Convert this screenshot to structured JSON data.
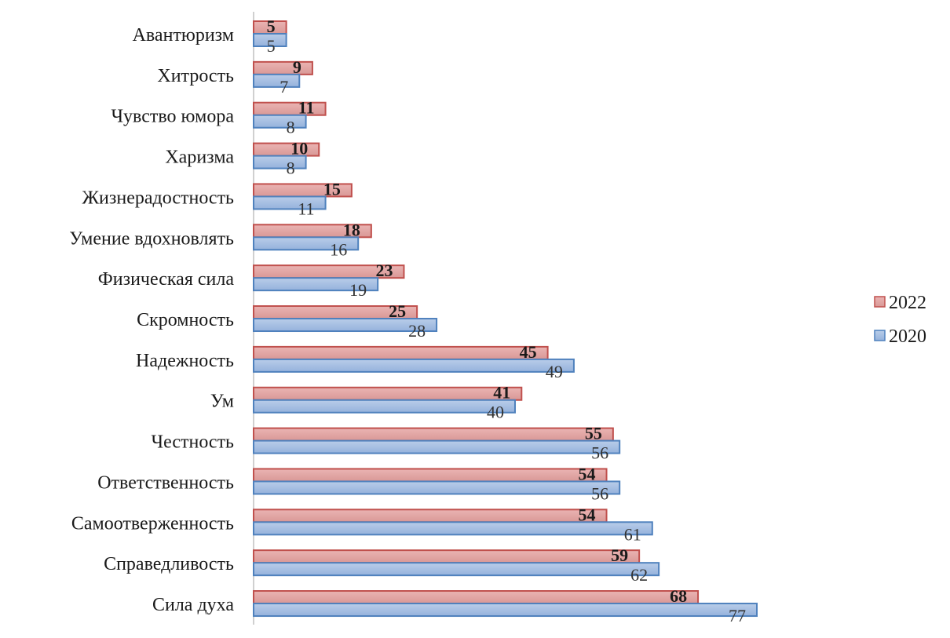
{
  "chart_data": {
    "type": "bar",
    "orientation": "horizontal",
    "title": "",
    "xlabel": "",
    "ylabel": "",
    "xlim": [
      0,
      77
    ],
    "grid": false,
    "legend_position": "right",
    "categories": [
      "Авантюризм",
      "Хитрость",
      "Чувство юмора",
      "Харизма",
      "Жизнерадостность",
      "Умение вдохновлять",
      "Физическая сила",
      "Скромность",
      "Надежность",
      "Ум",
      "Честность",
      "Ответственность",
      "Самоотверженность",
      "Справедливость",
      "Сила духа"
    ],
    "series": [
      {
        "name": "2022",
        "color": "#c0504d",
        "fill": "#e6a9a8",
        "values": [
          5,
          9,
          11,
          10,
          15,
          18,
          23,
          25,
          45,
          41,
          55,
          54,
          54,
          59,
          68
        ]
      },
      {
        "name": "2020",
        "color": "#4f81bd",
        "fill": "#a7bfe0",
        "values": [
          5,
          7,
          8,
          8,
          11,
          16,
          19,
          28,
          49,
          40,
          56,
          56,
          61,
          62,
          77
        ]
      }
    ]
  }
}
